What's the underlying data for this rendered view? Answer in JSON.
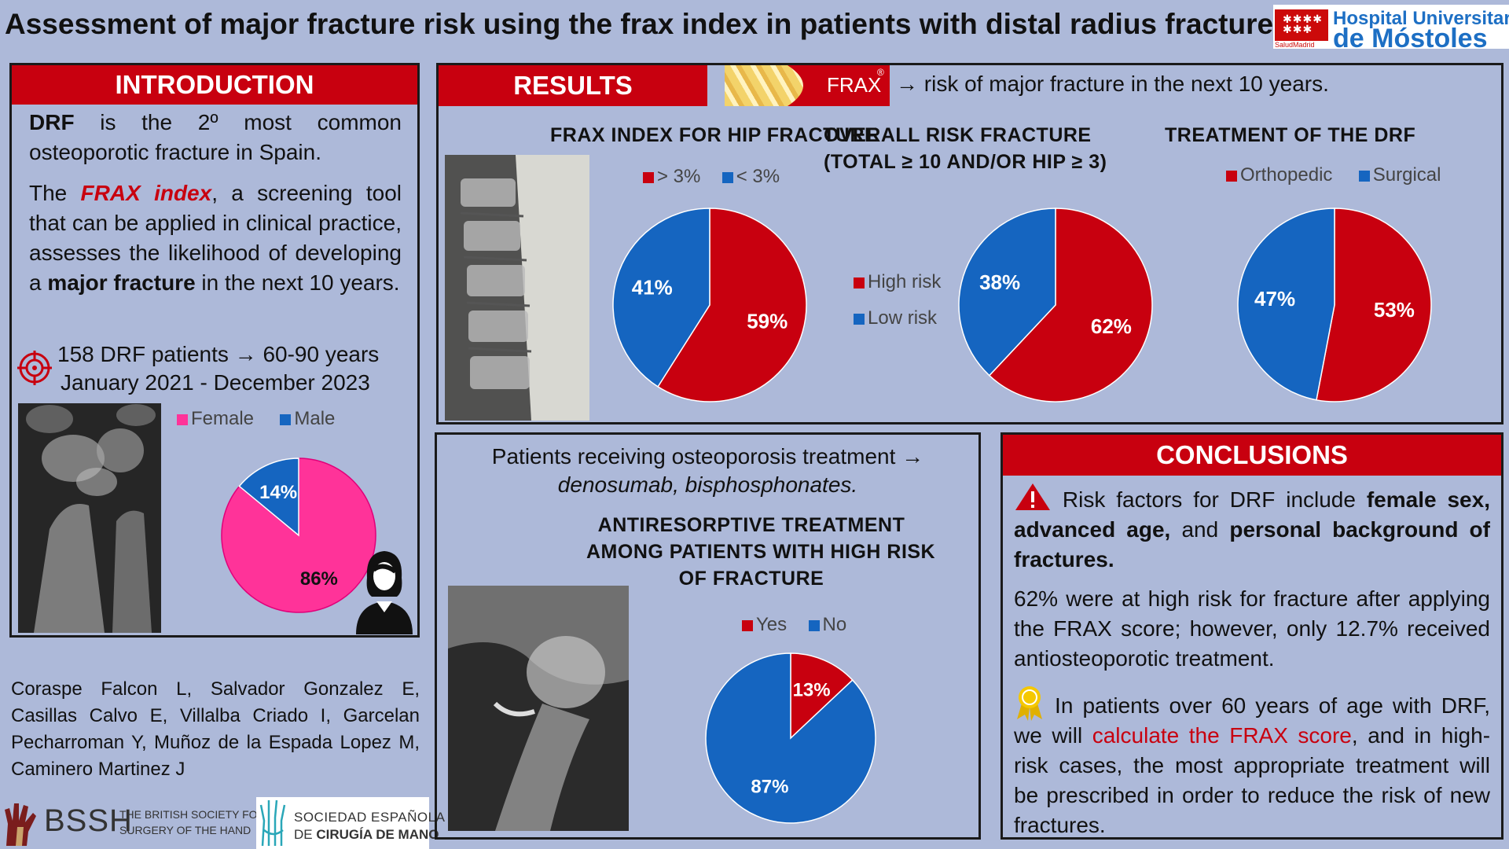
{
  "header": {
    "title": "Assessment of major fracture risk using the frax index in patients with distal radius fracture (DRF)",
    "hospital_line1": "Hospital Universitario",
    "hospital_line2": "de Móstoles",
    "hospital_sub": "SaludMadrid"
  },
  "introduction": {
    "heading": "INTRODUCTION",
    "p1_bold": "DRF",
    "p1_rest": " is the 2º most common osteoporotic fracture in Spain.",
    "p2_a": "The ",
    "p2_frax": "FRAX index",
    "p2_b": ", a screening tool that can be applied in clinical practice, assesses the likelihood of developing a ",
    "p2_major": "major fracture",
    "p2_c": " in the next 10 years.",
    "patients_line": "158 DRF patients → 60-90 years",
    "dates_line": "January 2021 - December 2023"
  },
  "results": {
    "heading": "RESULTS",
    "frax_logo_text": "FRAX",
    "frax_reg": "®",
    "frax_caption": "→ risk of major fracture in the next 10 years."
  },
  "treatment_box": {
    "line1": "Patients receiving osteoporosis treatment →",
    "line2": "denosumab, bisphosphonates."
  },
  "conclusions": {
    "heading": "CONCLUSIONS",
    "c1_a": " Risk factors for DRF include ",
    "c1_b": "female sex, advanced age,",
    "c1_c": " and ",
    "c1_d": "personal background of fractures.",
    "c2": "62% were at high risk for fracture after applying the FRAX score; however, only 12.7% received antiosteoporotic treatment.",
    "c3_a": " In patients over 60 years of age with DRF, we will ",
    "c3_red": "calculate the FRAX score",
    "c3_b": ", and in high-risk cases, the most appropriate treatment will be prescribed in order to reduce the risk of new fractures."
  },
  "authors": "Coraspe Falcon L, Salvador Gonzalez E, Casillas Calvo E, Villalba Criado I, Garcelan Pecharroman Y, Muñoz de la Espada Lopez M, Caminero Martinez J",
  "footer": {
    "bssh": "BSSH",
    "bssh_line1": "THE BRITISH SOCIETY FOR",
    "bssh_line2": "SURGERY OF THE HAND",
    "secm_line1": "SOCIEDAD ESPAÑOLA",
    "secm_line2_a": "DE ",
    "secm_line2_b": "CIRUGÍA DE MANO"
  },
  "colors": {
    "red": "#c8000f",
    "blue": "#1565c0",
    "pink": "#ff3399",
    "panel_bg": "#adb9d9"
  },
  "icons": [
    "target-icon",
    "woman-avatar-icon",
    "warning-icon",
    "award-ribbon-icon"
  ],
  "chart_data": [
    {
      "id": "sex",
      "type": "pie",
      "title": "",
      "slices": [
        {
          "label": "Female",
          "value": 86,
          "color": "#ff3399"
        },
        {
          "label": "Male",
          "value": 14,
          "color": "#1565c0"
        }
      ],
      "legend": [
        "Female",
        "Male"
      ]
    },
    {
      "id": "hip",
      "type": "pie",
      "title": "FRAX INDEX FOR HIP FRACTURE",
      "slices": [
        {
          "label": "> 3%",
          "value": 59,
          "color": "#c8000f"
        },
        {
          "label": "< 3%",
          "value": 41,
          "color": "#1565c0"
        }
      ],
      "legend": [
        "> 3%",
        "< 3%"
      ]
    },
    {
      "id": "overall",
      "type": "pie",
      "title": "OVERALL RISK FRACTURE",
      "subtitle": "(TOTAL ≥ 10 AND/OR HIP ≥ 3)",
      "slices": [
        {
          "label": "High risk",
          "value": 62,
          "color": "#c8000f"
        },
        {
          "label": "Low risk",
          "value": 38,
          "color": "#1565c0"
        }
      ],
      "legend": [
        "High risk",
        "Low risk"
      ]
    },
    {
      "id": "treatment",
      "type": "pie",
      "title": "TREATMENT OF THE DRF",
      "slices": [
        {
          "label": "Orthopedic",
          "value": 53,
          "color": "#c8000f"
        },
        {
          "label": "Surgical",
          "value": 47,
          "color": "#1565c0"
        }
      ],
      "legend": [
        "Orthopedic",
        "Surgical"
      ]
    },
    {
      "id": "antiresorptive",
      "type": "pie",
      "title": "ANTIRESORPTIVE TREATMENT AMONG PATIENTS WITH HIGH RISK OF FRACTURE",
      "title_lines": [
        "ANTIRESORPTIVE TREATMENT",
        "AMONG PATIENTS WITH HIGH RISK",
        "OF FRACTURE"
      ],
      "slices": [
        {
          "label": "Yes",
          "value": 13,
          "color": "#c8000f"
        },
        {
          "label": "No",
          "value": 87,
          "color": "#1565c0"
        }
      ],
      "legend": [
        "Yes",
        "No"
      ]
    }
  ]
}
